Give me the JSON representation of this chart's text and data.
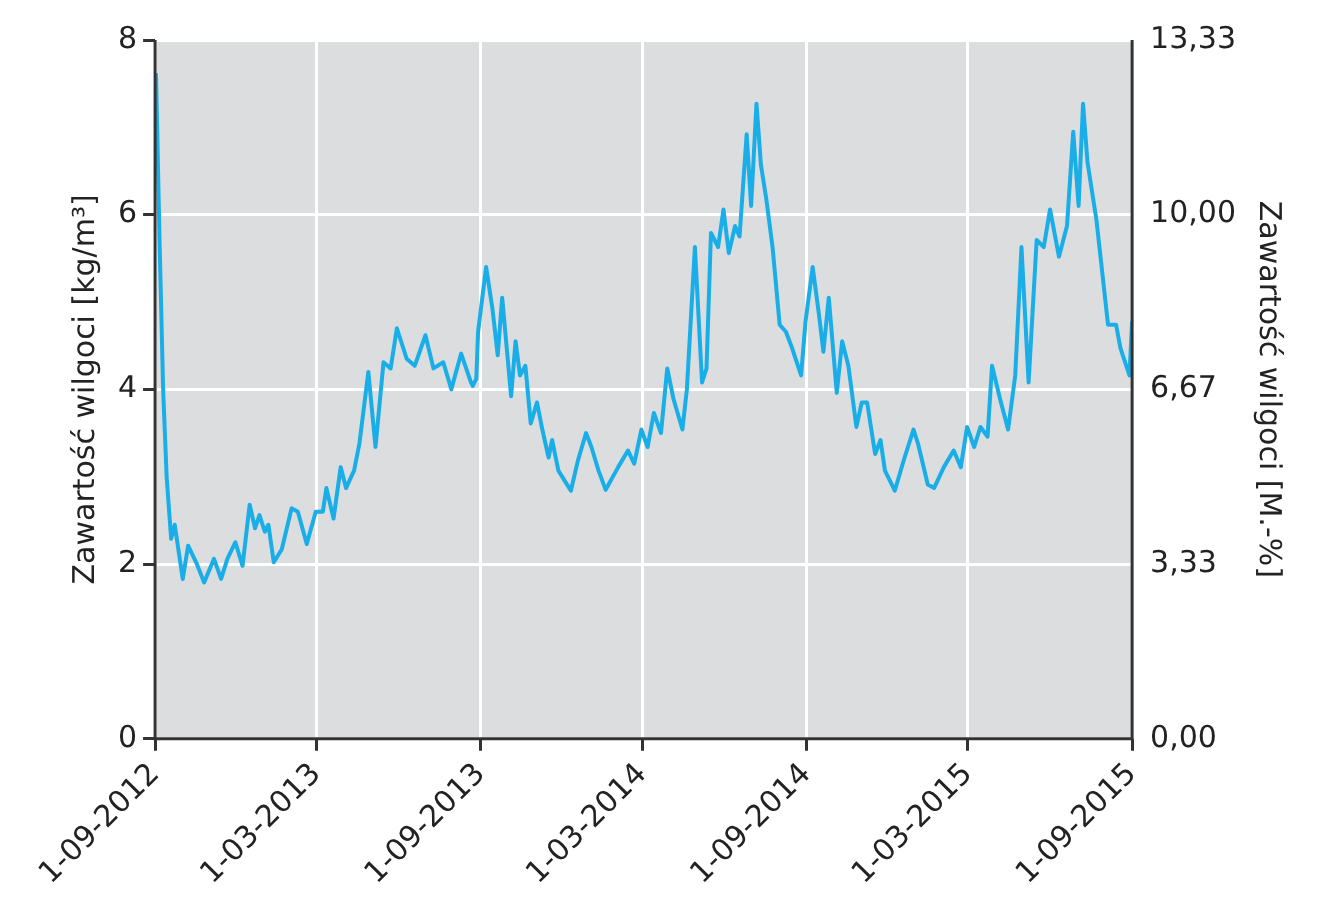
{
  "chart_data": {
    "type": "line",
    "ylabel": "Zawartość wilgoci [kg/m³]",
    "y2label": "Zawartość wilgoci [M.-%]",
    "xlim": [
      "2012-09-01",
      "2015-09-01"
    ],
    "xticks": [
      {
        "value": "2012-09-01",
        "label": "1-09-2012"
      },
      {
        "value": "2013-03-01",
        "label": "1-03-2013"
      },
      {
        "value": "2013-09-01",
        "label": "1-09-2013"
      },
      {
        "value": "2014-03-01",
        "label": "1-03-2014"
      },
      {
        "value": "2014-09-01",
        "label": "1-09-2014"
      },
      {
        "value": "2015-03-01",
        "label": "1-03-2015"
      },
      {
        "value": "2015-09-01",
        "label": "1-09-2015"
      }
    ],
    "ylim": [
      0,
      8
    ],
    "yticks": [
      0,
      2,
      4,
      6,
      8
    ],
    "y2lim": [
      0,
      13.33
    ],
    "y2ticks": [
      {
        "value": 0,
        "label": "0,00"
      },
      {
        "value": 3.33,
        "label": "3,33"
      },
      {
        "value": 6.67,
        "label": "6,67"
      },
      {
        "value": 10,
        "label": "10,00"
      },
      {
        "value": 13.33,
        "label": "13,33"
      }
    ],
    "grid": true,
    "legend": false,
    "marker": "none",
    "line_style": "solid",
    "x": [
      "2012-09-02",
      "2012-09-06",
      "2012-09-10",
      "2012-09-14",
      "2012-09-19",
      "2012-09-23",
      "2012-10-02",
      "2012-10-08",
      "2012-10-17",
      "2012-10-26",
      "2012-11-06",
      "2012-11-14",
      "2012-11-21",
      "2012-11-30",
      "2012-12-08",
      "2012-12-16",
      "2012-12-22",
      "2012-12-27",
      "2013-01-02",
      "2013-01-06",
      "2013-01-12",
      "2013-01-21",
      "2013-02-01",
      "2013-02-08",
      "2013-02-18",
      "2013-02-28",
      "2013-03-08",
      "2013-03-12",
      "2013-03-20",
      "2013-03-28",
      "2013-04-03",
      "2013-04-12",
      "2013-04-18",
      "2013-04-28",
      "2013-05-06",
      "2013-05-15",
      "2013-05-23",
      "2013-05-30",
      "2013-06-10",
      "2013-06-19",
      "2013-07-01",
      "2013-07-10",
      "2013-07-21",
      "2013-07-30",
      "2013-08-10",
      "2013-08-21",
      "2013-08-23",
      "2013-08-27",
      "2013-08-29",
      "2013-09-07",
      "2013-09-14",
      "2013-09-20",
      "2013-09-25",
      "2013-10-05",
      "2013-10-10",
      "2013-10-15",
      "2013-10-21",
      "2013-10-27",
      "2013-11-03",
      "2013-11-09",
      "2013-11-16",
      "2013-11-20",
      "2013-11-27",
      "2013-12-11",
      "2013-12-19",
      "2013-12-28",
      "2014-01-03",
      "2014-01-11",
      "2014-01-19",
      "2014-02-02",
      "2014-02-13",
      "2014-02-20",
      "2014-02-28",
      "2014-03-07",
      "2014-03-14",
      "2014-03-22",
      "2014-03-29",
      "2014-04-05",
      "2014-04-15",
      "2014-04-20",
      "2014-04-29",
      "2014-05-07",
      "2014-05-12",
      "2014-05-17",
      "2014-05-25",
      "2014-05-31",
      "2014-06-06",
      "2014-06-13",
      "2014-06-18",
      "2014-06-26",
      "2014-07-01",
      "2014-07-07",
      "2014-07-12",
      "2014-07-18",
      "2014-07-25",
      "2014-08-02",
      "2014-08-09",
      "2014-08-16",
      "2014-08-26",
      "2014-08-31",
      "2014-09-08",
      "2014-09-15",
      "2014-09-20",
      "2014-09-26",
      "2014-10-05",
      "2014-10-11",
      "2014-10-18",
      "2014-10-27",
      "2014-11-02",
      "2014-11-08",
      "2014-11-17",
      "2014-11-23",
      "2014-11-28",
      "2014-12-09",
      "2014-12-20",
      "2014-12-30",
      "2015-01-04",
      "2015-01-15",
      "2015-01-22",
      "2015-02-02",
      "2015-02-13",
      "2015-02-21",
      "2015-02-28",
      "2015-03-08",
      "2015-03-15",
      "2015-03-23",
      "2015-03-28",
      "2015-04-06",
      "2015-04-15",
      "2015-04-23",
      "2015-04-30",
      "2015-05-08",
      "2015-05-17",
      "2015-05-25",
      "2015-06-01",
      "2015-06-11",
      "2015-06-20",
      "2015-06-27",
      "2015-07-03",
      "2015-07-08",
      "2015-07-13",
      "2015-07-23",
      "2015-07-28",
      "2015-08-05",
      "2015-08-14",
      "2015-08-19",
      "2015-08-29",
      "2015-09-01"
    ],
    "series": [
      {
        "color": "#1aaee8",
        "values": [
          7.62,
          5.71,
          4.0,
          2.99,
          2.29,
          2.45,
          1.83,
          2.21,
          2.02,
          1.79,
          2.06,
          1.83,
          2.06,
          2.25,
          1.98,
          2.68,
          2.41,
          2.56,
          2.37,
          2.45,
          2.02,
          2.17,
          2.64,
          2.6,
          2.23,
          2.6,
          2.6,
          2.87,
          2.52,
          3.11,
          2.87,
          3.07,
          3.38,
          4.2,
          3.34,
          4.31,
          4.24,
          4.7,
          4.35,
          4.27,
          4.62,
          4.24,
          4.31,
          4.0,
          4.41,
          4.08,
          4.04,
          4.12,
          4.66,
          5.4,
          4.93,
          4.39,
          5.05,
          3.92,
          4.55,
          4.16,
          4.27,
          3.61,
          3.85,
          3.54,
          3.22,
          3.42,
          3.07,
          2.84,
          3.19,
          3.5,
          3.34,
          3.07,
          2.85,
          3.11,
          3.3,
          3.15,
          3.54,
          3.34,
          3.73,
          3.5,
          4.24,
          3.89,
          3.54,
          4.0,
          5.63,
          4.08,
          4.24,
          5.79,
          5.63,
          6.06,
          5.56,
          5.87,
          5.75,
          6.92,
          6.1,
          7.27,
          6.57,
          6.18,
          5.63,
          4.74,
          4.66,
          4.47,
          4.16,
          4.78,
          5.4,
          4.86,
          4.43,
          5.05,
          3.96,
          4.55,
          4.27,
          3.57,
          3.85,
          3.85,
          3.26,
          3.42,
          3.07,
          2.84,
          3.22,
          3.54,
          3.38,
          2.91,
          2.87,
          3.11,
          3.3,
          3.11,
          3.57,
          3.34,
          3.57,
          3.46,
          4.27,
          3.89,
          3.54,
          4.16,
          5.63,
          4.08,
          5.71,
          5.63,
          6.06,
          5.52,
          5.87,
          6.95,
          6.1,
          7.27,
          6.6,
          5.94,
          5.48,
          4.74,
          4.74,
          4.47,
          4.16,
          4.78
        ]
      }
    ]
  }
}
